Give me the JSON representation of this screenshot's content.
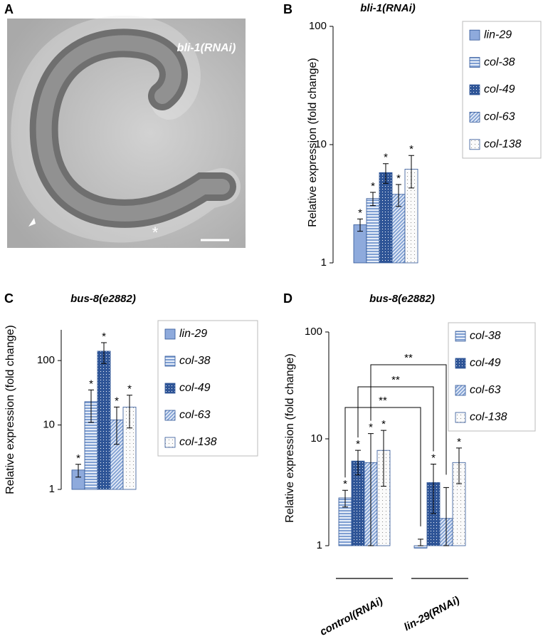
{
  "panel_labels": [
    "A",
    "B",
    "C",
    "D"
  ],
  "panel_a": {
    "label": "bli-1(RNAi)"
  },
  "chart_data": [
    {
      "type": "bar",
      "title": "bli-1(RNAi)",
      "ylabel": "Relative expression (fold change)",
      "log": true,
      "ylim": [
        1,
        100
      ],
      "yticks": [
        1,
        10,
        100
      ],
      "categories": [
        null
      ],
      "series": [
        {
          "name": "lin-29",
          "color": "#8eaadc",
          "pattern": "solid",
          "values": [
            2.1
          ],
          "errors": [
            0.25
          ],
          "labels": [
            "*"
          ]
        },
        {
          "name": "col-38",
          "color": "#7f9fd2",
          "pattern": "hlines",
          "values": [
            3.5
          ],
          "errors": [
            0.45
          ],
          "labels": [
            "*"
          ]
        },
        {
          "name": "col-49",
          "color": "#2f5597",
          "pattern": "dots",
          "values": [
            5.8
          ],
          "errors": [
            1.1
          ],
          "labels": [
            "*"
          ]
        },
        {
          "name": "col-63",
          "color": "#7f9fd2",
          "pattern": "diag",
          "values": [
            3.8
          ],
          "errors": [
            0.8
          ],
          "labels": [
            "*"
          ]
        },
        {
          "name": "col-138",
          "color": "#8c8c8c",
          "pattern": "sparse-dots",
          "values": [
            6.2
          ],
          "errors": [
            1.9
          ],
          "labels": [
            "*"
          ]
        }
      ]
    },
    {
      "type": "bar",
      "title": "bus-8(e2882)",
      "ylabel": "Relative expression (fold change)",
      "log": true,
      "ylim": [
        1,
        300
      ],
      "yticks": [
        1,
        10,
        100
      ],
      "categories": [
        null
      ],
      "series": [
        {
          "name": "lin-29",
          "color": "#8eaadc",
          "pattern": "solid",
          "values": [
            2.0
          ],
          "errors": [
            0.45
          ],
          "labels": [
            "*"
          ]
        },
        {
          "name": "col-38",
          "color": "#7f9fd2",
          "pattern": "hlines",
          "values": [
            23
          ],
          "errors": [
            12
          ],
          "labels": [
            "*"
          ]
        },
        {
          "name": "col-49",
          "color": "#2f5597",
          "pattern": "dots",
          "values": [
            140
          ],
          "errors": [
            50
          ],
          "labels": [
            "*"
          ]
        },
        {
          "name": "col-63",
          "color": "#7f9fd2",
          "pattern": "diag",
          "values": [
            12
          ],
          "errors": [
            7
          ],
          "labels": [
            "*"
          ]
        },
        {
          "name": "col-138",
          "color": "#8c8c8c",
          "pattern": "sparse-dots",
          "values": [
            19
          ],
          "errors": [
            10
          ],
          "labels": [
            "*"
          ]
        }
      ]
    },
    {
      "type": "bar",
      "title": "bus-8(e2882)",
      "ylabel": "Relative expression (fold change)",
      "log": true,
      "ylim": [
        1,
        100
      ],
      "yticks": [
        1,
        10,
        100
      ],
      "categories": [
        "control(RNAi)",
        "lin-29(RNAi)"
      ],
      "comparison_labels": [
        "**",
        "**",
        "**"
      ],
      "series": [
        {
          "name": "col-38",
          "color": "#7f9fd2",
          "pattern": "hlines",
          "values": [
            2.8,
            0.95
          ],
          "errors": [
            0.5,
            0.2
          ],
          "labels": [
            "*",
            null
          ]
        },
        {
          "name": "col-49",
          "color": "#2f5597",
          "pattern": "dots",
          "values": [
            6.2,
            3.9
          ],
          "errors": [
            1.6,
            1.9
          ],
          "labels": [
            "*",
            "*"
          ]
        },
        {
          "name": "col-63",
          "color": "#7f9fd2",
          "pattern": "diag",
          "values": [
            6.0,
            1.8
          ],
          "errors": [
            5.2,
            1.7
          ],
          "labels": [
            "*",
            null
          ]
        },
        {
          "name": "col-138",
          "color": "#8c8c8c",
          "pattern": "sparse-dots",
          "values": [
            7.8,
            6.0
          ],
          "errors": [
            4.2,
            2.2
          ],
          "labels": [
            "*",
            "*"
          ]
        }
      ]
    }
  ]
}
